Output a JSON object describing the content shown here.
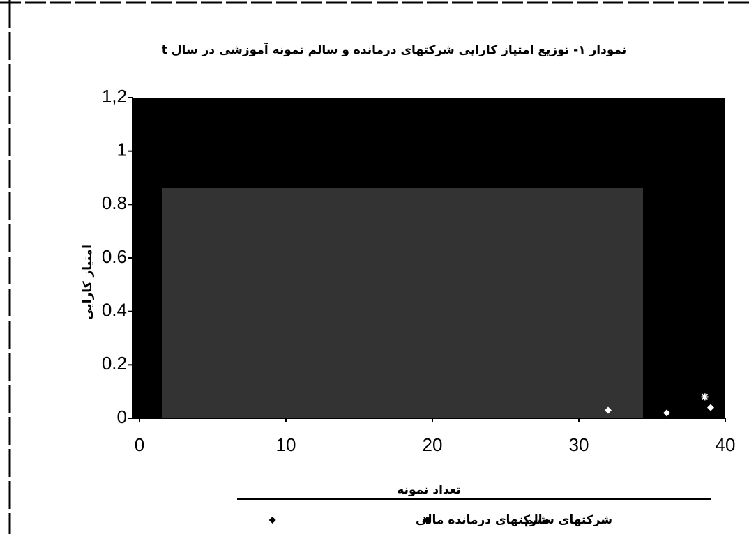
{
  "chart_data": {
    "type": "scatter",
    "title": "نمودار ۱- توزیع امتیاز کارایی شرکتهای درمانده و سالم نمونه آموزشی در سال t",
    "xlabel": "تعداد نمونه",
    "ylabel": "امتیاز کارایی",
    "xlim": [
      0,
      40
    ],
    "xticks": [
      0,
      10,
      20,
      30,
      40
    ],
    "ylim": [
      0,
      1.2
    ],
    "yticks": [
      0,
      0.2,
      0.4,
      0.6,
      0.8,
      1,
      {
        "value": 1.2,
        "label": "1,2"
      }
    ],
    "series": [
      {
        "name": "شرکتهای سالم",
        "color": "#ffffff",
        "marker": "star",
        "x": [
          38.6
        ],
        "values": [
          0.08
        ]
      },
      {
        "name": "شرکتهای درمانده مالی",
        "color": "#ffffff",
        "marker": "diamond",
        "x": [
          32,
          36,
          39
        ],
        "values": [
          0.03,
          0.02,
          0.04
        ]
      }
    ]
  }
}
